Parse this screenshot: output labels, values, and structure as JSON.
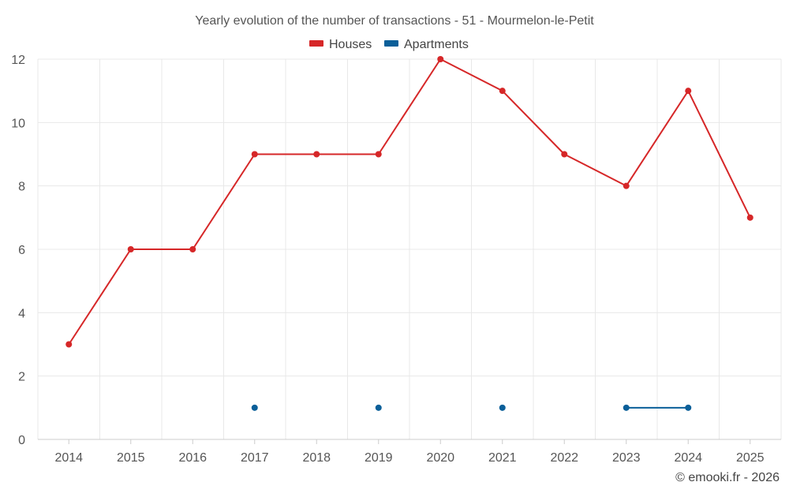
{
  "chart_data": {
    "type": "line",
    "title": "Yearly evolution of the number of transactions - 51 - Mourmelon-le-Petit",
    "xlabel": "",
    "ylabel": "",
    "categories": [
      "2014",
      "2015",
      "2016",
      "2017",
      "2018",
      "2019",
      "2020",
      "2021",
      "2022",
      "2023",
      "2024",
      "2025"
    ],
    "ylim": [
      0,
      12
    ],
    "yticks": [
      0,
      2,
      4,
      6,
      8,
      10,
      12
    ],
    "grid": true,
    "legend_position": "top-center",
    "series": [
      {
        "name": "Houses",
        "color": "#d62728",
        "values": [
          3,
          6,
          6,
          9,
          9,
          9,
          12,
          11,
          9,
          8,
          11,
          7
        ]
      },
      {
        "name": "Apartments",
        "color": "#0a5f99",
        "values": [
          null,
          null,
          null,
          1,
          null,
          1,
          null,
          1,
          null,
          1,
          1,
          null
        ]
      }
    ]
  },
  "credit": "© emooki.fr - 2026"
}
